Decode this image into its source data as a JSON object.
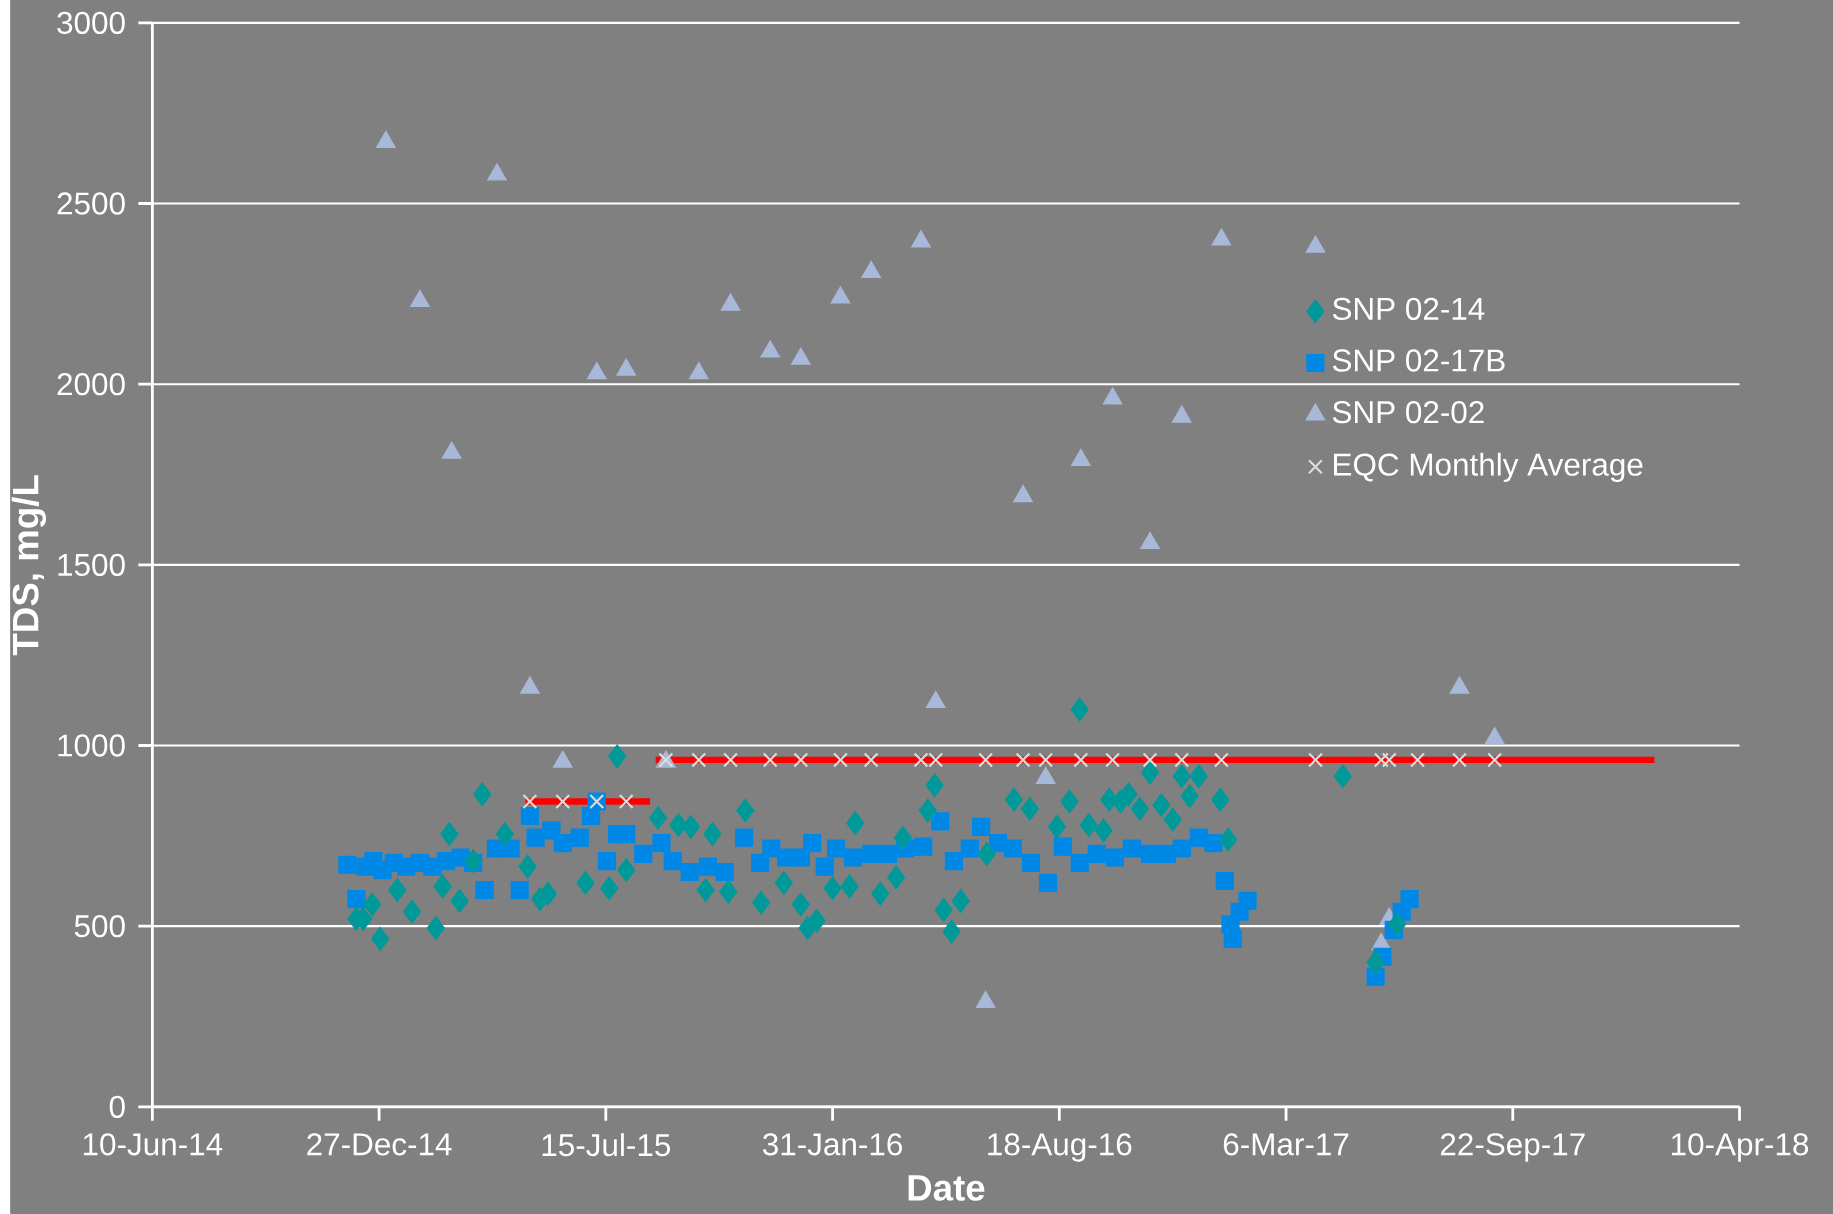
{
  "chart_data": {
    "type": "scatter",
    "xlabel": "Date",
    "ylabel": "TDS, mg/L",
    "xlim": [
      "2014-06-10",
      "2018-04-10"
    ],
    "xticks": [
      {
        "value": "2014-06-10",
        "label": "10-Jun-14"
      },
      {
        "value": "2014-12-27",
        "label": "27-Dec-14"
      },
      {
        "value": "2015-07-15",
        "label": "15-Jul-15"
      },
      {
        "value": "2016-01-31",
        "label": "31-Jan-16"
      },
      {
        "value": "2016-08-18",
        "label": "18-Aug-16"
      },
      {
        "value": "2017-03-06",
        "label": "6-Mar-17"
      },
      {
        "value": "2017-09-22",
        "label": "22-Sep-17"
      },
      {
        "value": "2018-04-10",
        "label": "10-Apr-18"
      }
    ],
    "ylim": [
      0,
      3000
    ],
    "yticks": [
      0,
      500,
      1000,
      1500,
      2000,
      2500,
      3000
    ],
    "grid": "y",
    "legend": "right",
    "series": [
      {
        "name": "SNP 02-14",
        "color": "#009999",
        "marker": "diamond",
        "x": [
          "2014-12-07",
          "2014-12-13",
          "2014-12-21",
          "2014-12-28",
          "2015-01-12",
          "2015-01-25",
          "2015-02-15",
          "2015-02-21",
          "2015-02-27",
          "2015-03-08",
          "2015-03-20",
          "2015-03-28",
          "2015-04-17",
          "2015-05-07",
          "2015-05-18",
          "2015-05-25",
          "2015-06-27",
          "2015-07-18",
          "2015-07-25",
          "2015-08-02",
          "2015-08-30",
          "2015-09-17",
          "2015-09-28",
          "2015-10-11",
          "2015-10-17",
          "2015-10-31",
          "2015-11-15",
          "2015-11-29",
          "2015-12-19",
          "2016-01-03",
          "2016-01-09",
          "2016-01-17",
          "2016-01-31",
          "2016-02-15",
          "2016-02-20",
          "2016-03-13",
          "2016-03-27",
          "2016-04-02",
          "2016-04-24",
          "2016-04-30",
          "2016-05-08",
          "2016-05-15",
          "2016-05-23",
          "2016-06-15",
          "2016-07-09",
          "2016-07-23",
          "2016-08-16",
          "2016-08-27",
          "2016-09-05",
          "2016-09-13",
          "2016-09-26",
          "2016-10-01",
          "2016-10-11",
          "2016-10-18",
          "2016-10-28",
          "2016-11-06",
          "2016-11-16",
          "2016-11-26",
          "2016-12-04",
          "2016-12-11",
          "2016-12-19",
          "2017-01-07",
          "2017-01-14",
          "2017-04-25",
          "2017-05-24",
          "2017-06-12"
        ],
        "values": [
          520,
          520,
          560,
          465,
          600,
          540,
          495,
          610,
          755,
          570,
          680,
          865,
          755,
          665,
          575,
          590,
          620,
          605,
          970,
          655,
          800,
          780,
          775,
          600,
          755,
          595,
          820,
          565,
          620,
          560,
          495,
          515,
          605,
          610,
          785,
          590,
          635,
          745,
          820,
          890,
          545,
          485,
          570,
          700,
          850,
          825,
          775,
          845,
          1100,
          780,
          765,
          850,
          845,
          865,
          825,
          925,
          835,
          795,
          915,
          860,
          915,
          850,
          740,
          915,
          400,
          505
        ]
      },
      {
        "name": "SNP 02-17B",
        "color": "#0088e6",
        "marker": "square",
        "x": [
          "2014-11-29",
          "2014-12-07",
          "2014-12-15",
          "2014-12-22",
          "2014-12-30",
          "2015-01-09",
          "2015-01-20",
          "2015-02-01",
          "2015-02-12",
          "2015-02-24",
          "2015-03-09",
          "2015-03-20",
          "2015-03-30",
          "2015-04-09",
          "2015-04-22",
          "2015-04-30",
          "2015-05-09",
          "2015-05-14",
          "2015-05-28",
          "2015-06-07",
          "2015-06-22",
          "2015-07-02",
          "2015-07-07",
          "2015-07-16",
          "2015-07-25",
          "2015-08-02",
          "2015-08-17",
          "2015-09-02",
          "2015-09-12",
          "2015-09-27",
          "2015-10-13",
          "2015-10-28",
          "2015-11-14",
          "2015-11-28",
          "2015-12-08",
          "2015-12-21",
          "2016-01-03",
          "2016-01-13",
          "2016-01-24",
          "2016-02-03",
          "2016-02-18",
          "2016-03-05",
          "2016-03-20",
          "2016-04-04",
          "2016-04-20",
          "2016-05-05",
          "2016-05-17",
          "2016-05-31",
          "2016-06-10",
          "2016-06-25",
          "2016-07-08",
          "2016-07-24",
          "2016-08-08",
          "2016-08-21",
          "2016-09-05",
          "2016-09-20",
          "2016-10-06",
          "2016-10-21",
          "2016-11-06",
          "2016-11-21",
          "2016-12-04",
          "2016-12-19",
          "2017-01-01",
          "2017-01-11",
          "2017-01-16",
          "2017-01-18",
          "2017-01-24",
          "2017-01-31",
          "2017-05-24",
          "2017-05-30",
          "2017-06-09",
          "2017-06-16",
          "2017-06-23"
        ],
        "values": [
          670,
          575,
          665,
          680,
          655,
          675,
          665,
          675,
          665,
          680,
          690,
          675,
          600,
          715,
          715,
          600,
          805,
          745,
          765,
          730,
          745,
          805,
          845,
          680,
          755,
          755,
          700,
          730,
          680,
          650,
          665,
          650,
          745,
          675,
          715,
          690,
          690,
          730,
          665,
          715,
          690,
          700,
          700,
          715,
          720,
          790,
          680,
          715,
          775,
          730,
          715,
          675,
          620,
          720,
          675,
          700,
          690,
          715,
          700,
          700,
          715,
          745,
          730,
          625,
          505,
          465,
          540,
          570,
          360,
          415,
          490,
          540,
          575
        ]
      },
      {
        "name": "SNP 02-02",
        "color": "#a8b8d8",
        "marker": "triangle",
        "x": [
          "2015-01-02",
          "2015-02-01",
          "2015-03-01",
          "2015-04-10",
          "2015-05-09",
          "2015-06-07",
          "2015-07-07",
          "2015-08-02",
          "2015-09-06",
          "2015-10-05",
          "2015-11-02",
          "2015-12-07",
          "2016-01-03",
          "2016-02-07",
          "2016-03-05",
          "2016-04-18",
          "2016-05-01",
          "2016-06-14",
          "2016-07-17",
          "2016-08-06",
          "2016-09-06",
          "2016-10-04",
          "2016-11-06",
          "2016-12-04",
          "2017-01-08",
          "2017-04-01",
          "2017-05-29",
          "2017-06-05",
          "2017-08-06",
          "2017-09-06"
        ],
        "values": [
          2670,
          2230,
          1810,
          2580,
          1160,
          955,
          2030,
          2040,
          955,
          2030,
          2220,
          2090,
          2070,
          2240,
          2310,
          2395,
          1120,
          290,
          1690,
          910,
          1790,
          1960,
          1560,
          1910,
          2400,
          2380,
          450,
          520,
          1160,
          1020
        ]
      },
      {
        "name": "EQC Monthly Average",
        "color": "#dcdcdc",
        "marker": "cross",
        "x": [
          "2015-05-09",
          "2015-06-07",
          "2015-07-07",
          "2015-08-02",
          "2015-09-06",
          "2015-10-05",
          "2015-11-02",
          "2015-12-07",
          "2016-01-03",
          "2016-02-07",
          "2016-03-05",
          "2016-04-18",
          "2016-05-01",
          "2016-06-14",
          "2016-07-17",
          "2016-08-06",
          "2016-09-06",
          "2016-10-04",
          "2016-11-06",
          "2016-12-04",
          "2017-01-08",
          "2017-04-01",
          "2017-05-29",
          "2017-06-05",
          "2017-06-30",
          "2017-08-06",
          "2017-09-06"
        ],
        "values": [
          845,
          845,
          845,
          845,
          960,
          960,
          960,
          960,
          960,
          960,
          960,
          960,
          960,
          960,
          960,
          960,
          960,
          960,
          960,
          960,
          960,
          960,
          960,
          960,
          960,
          960,
          960
        ]
      },
      {
        "type": "line",
        "color": "#ff0000",
        "x": [
          "2015-05-05",
          "2015-08-23"
        ],
        "values": [
          845,
          845
        ]
      },
      {
        "type": "line",
        "color": "#ff0000",
        "x": [
          "2015-08-28",
          "2018-01-25"
        ],
        "values": [
          960,
          960
        ]
      }
    ]
  }
}
